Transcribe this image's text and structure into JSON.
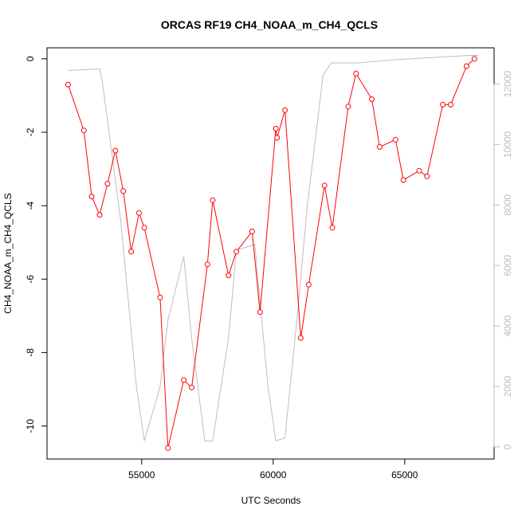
{
  "chart_data": {
    "type": "line",
    "title": "ORCAS RF19 CH4_NOAA_m_CH4_QCLS",
    "xlabel": "UTC Seconds",
    "ylabel": "CH4_NOAA_m_CH4_QCLS",
    "xlim": [
      51400,
      68400
    ],
    "ylim": [
      -10.9,
      0.3
    ],
    "y2lim": [
      -400,
      13200
    ],
    "x_ticks": [
      55000,
      60000,
      65000
    ],
    "x_tick_labels": [
      "55000",
      "60000",
      "65000"
    ],
    "y_ticks": [
      0,
      -2,
      -4,
      -6,
      -8,
      -10
    ],
    "y_tick_labels": [
      "0",
      "-2",
      "-4",
      "-6",
      "-8",
      "-10"
    ],
    "y2_ticks": [
      0,
      2000,
      4000,
      6000,
      8000,
      10000,
      12000
    ],
    "y2_tick_labels": [
      "0",
      "2000",
      "4000",
      "6000",
      "8000",
      "10000",
      "12000"
    ],
    "colors": {
      "series": "#ff0000",
      "secondary": "#bdbdbd",
      "axis": "#000000",
      "right_axis": "#bdbdbd"
    },
    "series": [
      {
        "axis": "left",
        "style": "line+circle",
        "x": [
          52200,
          52800,
          53100,
          53400,
          53700,
          54000,
          54300,
          54600,
          54900,
          55100,
          55700,
          56000,
          56600,
          56900,
          57500,
          57700,
          58300,
          58600,
          59200,
          59500,
          60100,
          60150,
          60450,
          61050,
          61350,
          61950,
          62250,
          62850,
          63150,
          63750,
          64050,
          64650,
          64950,
          65550,
          65850,
          66450,
          66750,
          67350,
          67650
        ],
        "y": [
          -0.7,
          -1.95,
          -3.75,
          -4.25,
          -3.4,
          -2.5,
          -3.6,
          -5.25,
          -4.2,
          -4.6,
          -6.5,
          -10.6,
          -8.75,
          -8.95,
          -5.6,
          -3.85,
          -5.9,
          -5.25,
          -4.7,
          -6.9,
          -1.9,
          -2.15,
          -1.4,
          -7.6,
          -6.15,
          -3.45,
          -4.6,
          -1.3,
          -0.4,
          -1.1,
          -2.4,
          -2.2,
          -3.3,
          -3.05,
          -3.2,
          -1.25,
          -1.25,
          -0.2,
          0.0
        ]
      },
      {
        "axis": "right",
        "style": "line",
        "x": [
          52200,
          53400,
          53500,
          54200,
          54800,
          55100,
          55700,
          56000,
          56600,
          56900,
          57400,
          57700,
          58300,
          58600,
          59300,
          59800,
          60100,
          60450,
          60900,
          61300,
          61900,
          62200,
          63200,
          64500,
          65500,
          66500,
          67500,
          67800
        ],
        "y": [
          12450,
          12500,
          12100,
          7500,
          2000,
          200,
          2000,
          4200,
          6300,
          3600,
          200,
          200,
          3600,
          6500,
          6700,
          2000,
          200,
          300,
          4200,
          8000,
          12300,
          12700,
          12700,
          12800,
          12850,
          12900,
          12950,
          12950
        ]
      }
    ]
  }
}
